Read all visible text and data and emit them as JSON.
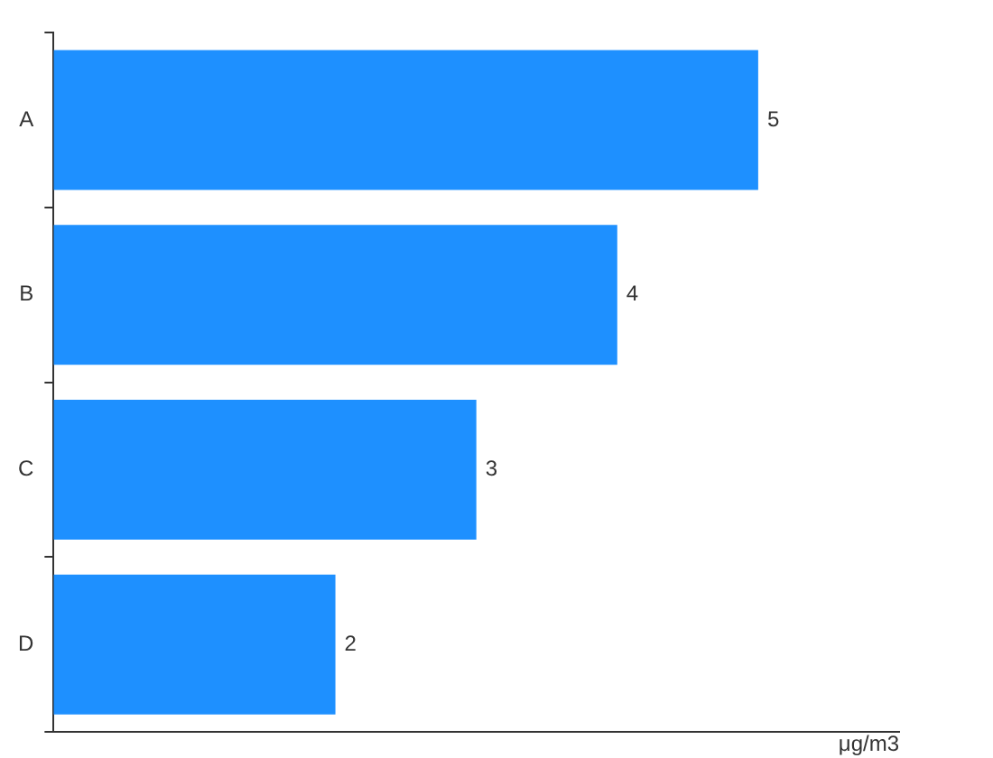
{
  "chart_data": {
    "type": "bar",
    "orientation": "horizontal",
    "categories": [
      "A",
      "B",
      "C",
      "D"
    ],
    "xlabel": "μg/m3",
    "series": [
      {
        "color": "#1e90ff",
        "values": [
          5,
          4,
          3,
          2
        ]
      }
    ],
    "xlim": [
      0,
      6
    ],
    "tick_labels": "y",
    "data_labels": true,
    "grid": false,
    "legend": false
  }
}
